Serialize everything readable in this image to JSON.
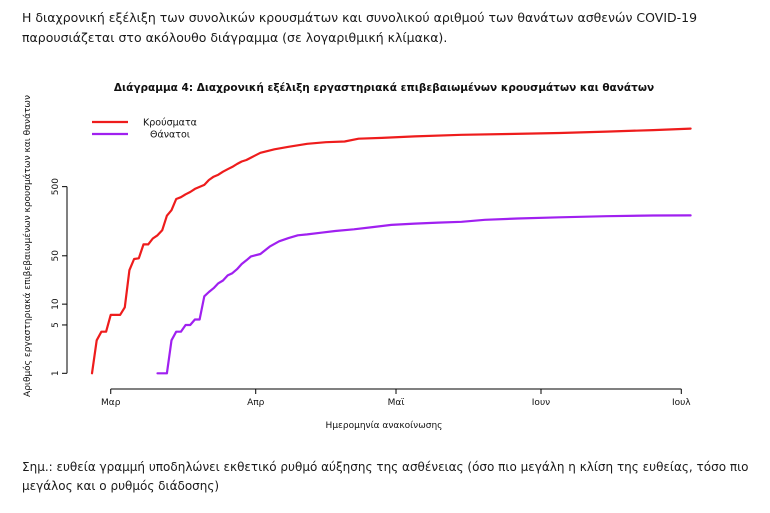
{
  "document": {
    "intro": "Η διαχρονική εξέλιξη των συνολικών κρουσμάτων και συνολικού αριθμού των θανάτων ασθενών COVID-19 παρουσιάζεται στο ακόλουθο διάγραμμα (σε λογαριθμική κλίμακα).",
    "footnote": "Σημ.: ευθεία γραμμή υποδηλώνει εκθετικό ρυθμό αύξησης της ασθένειας (όσο πιο μεγάλη η κλίση της ευθείας, τόσο πιο μεγάλος και ο ρυθμός διάδοσης)"
  },
  "chart_data": {
    "type": "line",
    "title": "Διάγραμμα 4: Διαχρονική εξέλιξη εργαστηριακά επιβεβαιωμένων κρουσμάτων και θανάτων",
    "xlabel": "Ημερομηνία ανακοίνωσης",
    "ylabel": "Αριθμός εργαστηριακά επιβεβαιωμένων κρουσμάτων και θανάτων",
    "y_scale": "log",
    "ylim": [
      0.8,
      6000
    ],
    "y_ticks": [
      1,
      5,
      10,
      50,
      500
    ],
    "x_ticks": [
      {
        "label": "Μαρ",
        "date": "2020-03-01"
      },
      {
        "label": "Απρ",
        "date": "2020-04-01"
      },
      {
        "label": "Μαϊ",
        "date": "2020-05-01"
      },
      {
        "label": "Ιουν",
        "date": "2020-06-01"
      },
      {
        "label": "Ιουλ",
        "date": "2020-07-01"
      }
    ],
    "xlim": [
      "2020-02-23",
      "2020-07-05"
    ],
    "legend_position": "top-left",
    "grid": false,
    "series": [
      {
        "name": "Κρούσματα",
        "color": "#ee1c1c",
        "points": [
          [
            "2020-02-26",
            1
          ],
          [
            "2020-02-27",
            3
          ],
          [
            "2020-02-28",
            4
          ],
          [
            "2020-02-29",
            4
          ],
          [
            "2020-03-01",
            7
          ],
          [
            "2020-03-02",
            7
          ],
          [
            "2020-03-03",
            7
          ],
          [
            "2020-03-04",
            9
          ],
          [
            "2020-03-05",
            31
          ],
          [
            "2020-03-06",
            45
          ],
          [
            "2020-03-07",
            46
          ],
          [
            "2020-03-08",
            73
          ],
          [
            "2020-03-09",
            73
          ],
          [
            "2020-03-10",
            89
          ],
          [
            "2020-03-11",
            99
          ],
          [
            "2020-03-12",
            117
          ],
          [
            "2020-03-13",
            190
          ],
          [
            "2020-03-14",
            228
          ],
          [
            "2020-03-15",
            331
          ],
          [
            "2020-03-16",
            352
          ],
          [
            "2020-03-17",
            387
          ],
          [
            "2020-03-18",
            418
          ],
          [
            "2020-03-19",
            464
          ],
          [
            "2020-03-20",
            495
          ],
          [
            "2020-03-21",
            530
          ],
          [
            "2020-03-22",
            624
          ],
          [
            "2020-03-23",
            695
          ],
          [
            "2020-03-24",
            743
          ],
          [
            "2020-03-25",
            821
          ],
          [
            "2020-03-26",
            892
          ],
          [
            "2020-03-27",
            966
          ],
          [
            "2020-03-28",
            1061
          ],
          [
            "2020-03-29",
            1156
          ],
          [
            "2020-03-30",
            1212
          ],
          [
            "2020-03-31",
            1314
          ],
          [
            "2020-04-02",
            1544
          ],
          [
            "2020-04-05",
            1735
          ],
          [
            "2020-04-08",
            1884
          ],
          [
            "2020-04-12",
            2081
          ],
          [
            "2020-04-16",
            2192
          ],
          [
            "2020-04-20",
            2245
          ],
          [
            "2020-04-23",
            2463
          ],
          [
            "2020-04-28",
            2534
          ],
          [
            "2020-05-05",
            2663
          ],
          [
            "2020-05-15",
            2810
          ],
          [
            "2020-05-25",
            2882
          ],
          [
            "2020-06-05",
            2980
          ],
          [
            "2020-06-15",
            3121
          ],
          [
            "2020-06-25",
            3287
          ],
          [
            "2020-07-03",
            3458
          ]
        ]
      },
      {
        "name": "Θάνατοι",
        "color": "#a020f0",
        "points": [
          [
            "2020-03-11",
            1
          ],
          [
            "2020-03-13",
            1
          ],
          [
            "2020-03-14",
            3
          ],
          [
            "2020-03-15",
            4
          ],
          [
            "2020-03-16",
            4
          ],
          [
            "2020-03-17",
            5
          ],
          [
            "2020-03-18",
            5
          ],
          [
            "2020-03-19",
            6
          ],
          [
            "2020-03-20",
            6
          ],
          [
            "2020-03-21",
            13
          ],
          [
            "2020-03-22",
            15
          ],
          [
            "2020-03-23",
            17
          ],
          [
            "2020-03-24",
            20
          ],
          [
            "2020-03-25",
            22
          ],
          [
            "2020-03-26",
            26
          ],
          [
            "2020-03-27",
            28
          ],
          [
            "2020-03-28",
            32
          ],
          [
            "2020-03-29",
            38
          ],
          [
            "2020-03-30",
            43
          ],
          [
            "2020-03-31",
            49
          ],
          [
            "2020-04-02",
            53
          ],
          [
            "2020-04-04",
            68
          ],
          [
            "2020-04-06",
            81
          ],
          [
            "2020-04-08",
            90
          ],
          [
            "2020-04-10",
            99
          ],
          [
            "2020-04-12",
            102
          ],
          [
            "2020-04-15",
            108
          ],
          [
            "2020-04-18",
            114
          ],
          [
            "2020-04-22",
            121
          ],
          [
            "2020-04-26",
            130
          ],
          [
            "2020-04-30",
            140
          ],
          [
            "2020-05-05",
            146
          ],
          [
            "2020-05-10",
            151
          ],
          [
            "2020-05-15",
            155
          ],
          [
            "2020-05-20",
            166
          ],
          [
            "2020-05-27",
            173
          ],
          [
            "2020-06-05",
            180
          ],
          [
            "2020-06-15",
            187
          ],
          [
            "2020-06-25",
            191
          ],
          [
            "2020-07-03",
            192
          ]
        ]
      }
    ]
  }
}
